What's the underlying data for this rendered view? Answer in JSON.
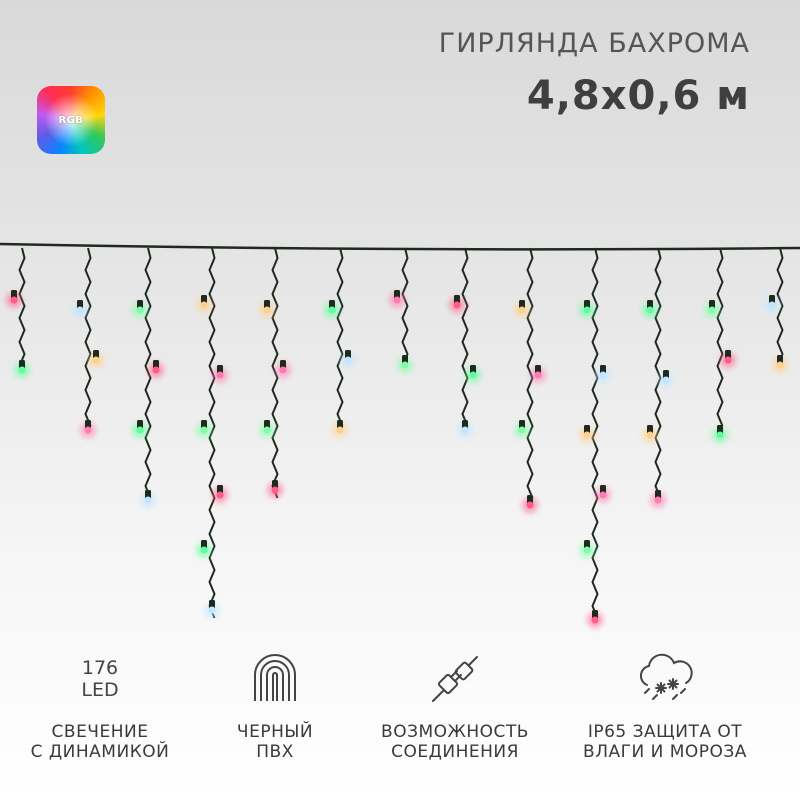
{
  "header": {
    "title": "ГИРЛЯНДА БАХРОМА",
    "size": "4,8x0,6 м"
  },
  "badge": {
    "label": "RGB"
  },
  "features": [
    {
      "icon": "led-count",
      "count": "176",
      "unit": "LED",
      "line1": "СВЕЧЕНИЕ",
      "line2": "С ДИНАМИКОЙ"
    },
    {
      "icon": "cable-icon",
      "line1": "ЧЕРНЫЙ",
      "line2": "ПВХ"
    },
    {
      "icon": "plug-connection-icon",
      "line1": "ВОЗМОЖНОСТЬ",
      "line2": "СОЕДИНЕНИЯ"
    },
    {
      "icon": "snow-cloud-icon",
      "line1": "IP65 ЗАЩИТА ОТ",
      "line2": "ВЛАГИ И МОРОЗА"
    }
  ],
  "colors": {
    "wire": "#1e2a1e",
    "led_colors": [
      "#ff5c8a",
      "#5cff9a",
      "#bfe6ff",
      "#ffd08a",
      "#ff7ab0",
      "#7dffa5"
    ]
  }
}
